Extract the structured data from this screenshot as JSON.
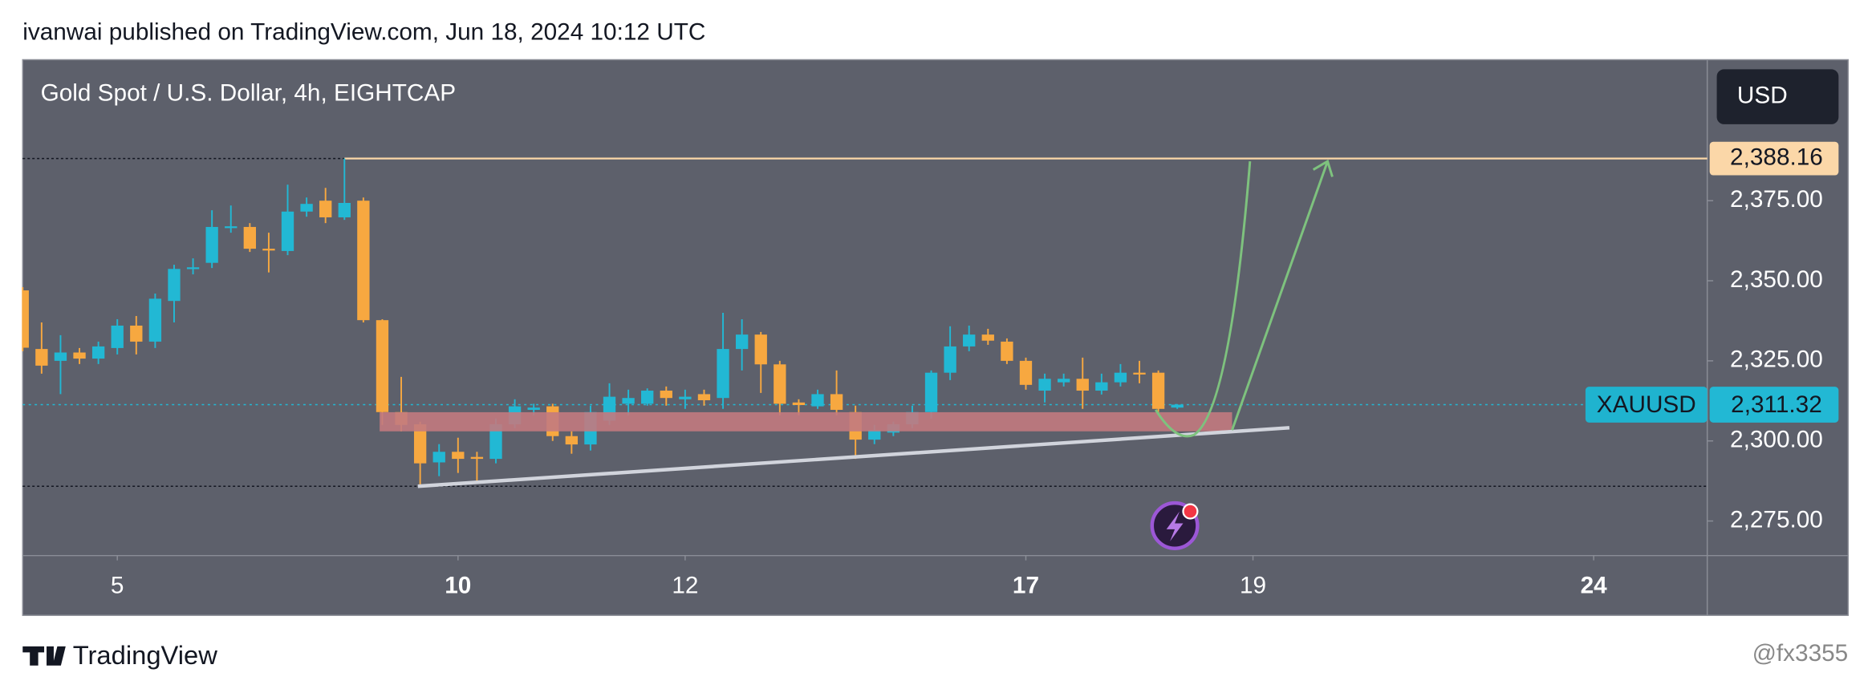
{
  "header": {
    "text": "ivanwai published on TradingView.com, Jun 18, 2024 10:12 UTC"
  },
  "footer": {
    "brand": "TradingView",
    "watermark": "@fx3355"
  },
  "chart_data": {
    "type": "candlestick",
    "title": "Gold Spot / U.S. Dollar, 4h, EIGHTCAP",
    "currency": "USD",
    "symbol": "XAUUSD",
    "up_color": "#22b8d4",
    "down_color": "#f7a840",
    "open": [
      2347,
      2328.7,
      2325,
      2327.6,
      2325.7,
      2329,
      2336,
      2331,
      2343.7,
      2353.7,
      2355.6,
      2366.5,
      2366.8,
      2360,
      2359.3,
      2371.6,
      2375,
      2369.8,
      2375,
      2337.7,
      2309,
      2305.2,
      2293.3,
      2296.6,
      2295,
      2294.4,
      2305.2,
      2309.7,
      2310.8,
      2301.5,
      2298.9,
      2306.3,
      2311.6,
      2311.6,
      2315.7,
      2313,
      2314.6,
      2313.4,
      2328.7,
      2333.2,
      2323.9,
      2312,
      2310.8,
      2314.6,
      2309,
      2300.4,
      2302.6,
      2305.2,
      2309,
      2321.3,
      2329.5,
      2333.2,
      2331,
      2325,
      2315.7,
      2318.3,
      2319.4,
      2315.7,
      2318.3,
      2321.3,
      2321.3,
      2310.4
    ],
    "high": [
      2348,
      2337,
      2333,
      2329,
      2331,
      2338,
      2339,
      2346,
      2355,
      2357,
      2372,
      2373.5,
      2368,
      2365,
      2380,
      2376,
      2379,
      2388.16,
      2376,
      2338,
      2320,
      2306,
      2299,
      2301,
      2296.6,
      2307,
      2313,
      2311.6,
      2311.6,
      2303,
      2311,
      2318,
      2316,
      2316.4,
      2317,
      2316,
      2316,
      2340,
      2338,
      2334,
      2325,
      2313,
      2316,
      2322,
      2311,
      2305,
      2306,
      2311,
      2322,
      2335.8,
      2336,
      2335,
      2332,
      2326,
      2321,
      2321,
      2326,
      2321,
      2324,
      2325,
      2322,
      2311.5
    ],
    "low": [
      2328,
      2321,
      2314.6,
      2324,
      2324,
      2327,
      2327,
      2329,
      2337,
      2352,
      2354,
      2365,
      2359,
      2352.6,
      2358,
      2370,
      2368,
      2369,
      2337,
      2305,
      2303,
      2285.4,
      2289,
      2290,
      2286.6,
      2293,
      2304,
      2308,
      2300,
      2296,
      2297,
      2305,
      2308,
      2311,
      2311,
      2310,
      2311,
      2310,
      2322,
      2315,
      2308,
      2308,
      2310,
      2308,
      2294.4,
      2299,
      2301.5,
      2304,
      2307,
      2319,
      2328,
      2330,
      2324,
      2316,
      2312,
      2317,
      2310,
      2314.5,
      2317,
      2318,
      2309,
      2310
    ],
    "close": [
      2329.1,
      2323.5,
      2327.6,
      2325.7,
      2329.5,
      2336,
      2331,
      2344.4,
      2353.7,
      2354.2,
      2366.8,
      2367,
      2360,
      2359.5,
      2371.6,
      2374,
      2369.8,
      2374.3,
      2337.7,
      2309,
      2305,
      2293,
      2296.6,
      2294.4,
      2294.4,
      2305.2,
      2310.8,
      2310.4,
      2301.5,
      2298.9,
      2309,
      2313.8,
      2313.4,
      2315.7,
      2313.4,
      2313.8,
      2312.7,
      2328.7,
      2333.2,
      2323.9,
      2311.6,
      2311.2,
      2314.6,
      2309.7,
      2300.4,
      2303.4,
      2305.2,
      2309,
      2321.3,
      2329.5,
      2333.2,
      2331.3,
      2325,
      2317.5,
      2319.4,
      2319.4,
      2315.7,
      2318.3,
      2321.3,
      2321,
      2310,
      2311.32
    ],
    "xlim": [
      0,
      89
    ],
    "xticks": [
      {
        "value": 5,
        "label": "5"
      },
      {
        "value": 23,
        "label": "10"
      },
      {
        "value": 35,
        "label": "12"
      },
      {
        "value": 53,
        "label": "17"
      },
      {
        "value": 65,
        "label": "19"
      },
      {
        "value": 83,
        "label": "24"
      }
    ],
    "ylim": [
      2264.2,
      2419
    ],
    "yticks": [
      {
        "value": 2275,
        "label": "2,275.00"
      },
      {
        "value": 2300,
        "label": "2,300.00"
      },
      {
        "value": 2325,
        "label": "2,325.00"
      },
      {
        "value": 2350,
        "label": "2,350.00"
      },
      {
        "value": 2375,
        "label": "2,375.00"
      }
    ],
    "high_level": {
      "value": 2388.16,
      "label": "2,388.16"
    },
    "last_price": {
      "value": 2311.32,
      "label": "2,311.32"
    }
  }
}
